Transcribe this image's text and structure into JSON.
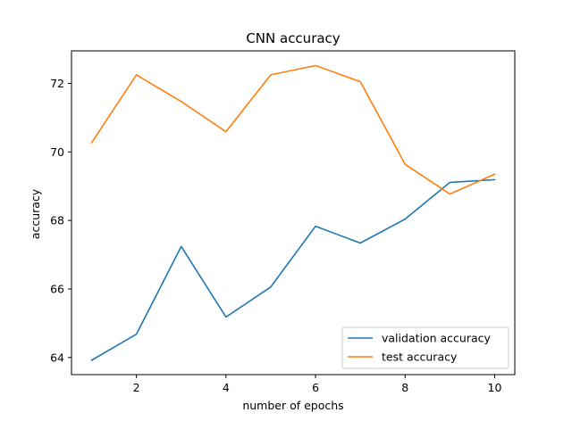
{
  "chart_data": {
    "type": "line",
    "title": "CNN accuracy",
    "xlabel": "number of epochs",
    "ylabel": "accuracy",
    "xlim": [
      0.55,
      10.45
    ],
    "ylim": [
      63.5,
      72.95
    ],
    "xticks": [
      2,
      4,
      6,
      8,
      10
    ],
    "yticks": [
      64,
      66,
      68,
      70,
      72
    ],
    "grid": false,
    "legend_position": "lower-right",
    "x": [
      1,
      2,
      3,
      4,
      5,
      6,
      7,
      8,
      9,
      10
    ],
    "series": [
      {
        "name": "validation accuracy",
        "color": "#1f77b4",
        "values": [
          63.92,
          64.68,
          67.24,
          65.18,
          66.06,
          67.83,
          67.34,
          68.04,
          69.11,
          69.19
        ]
      },
      {
        "name": "test accuracy",
        "color": "#ff7f0e",
        "values": [
          70.27,
          72.25,
          71.47,
          70.59,
          72.25,
          72.52,
          72.05,
          69.64,
          68.77,
          69.35
        ]
      }
    ]
  }
}
